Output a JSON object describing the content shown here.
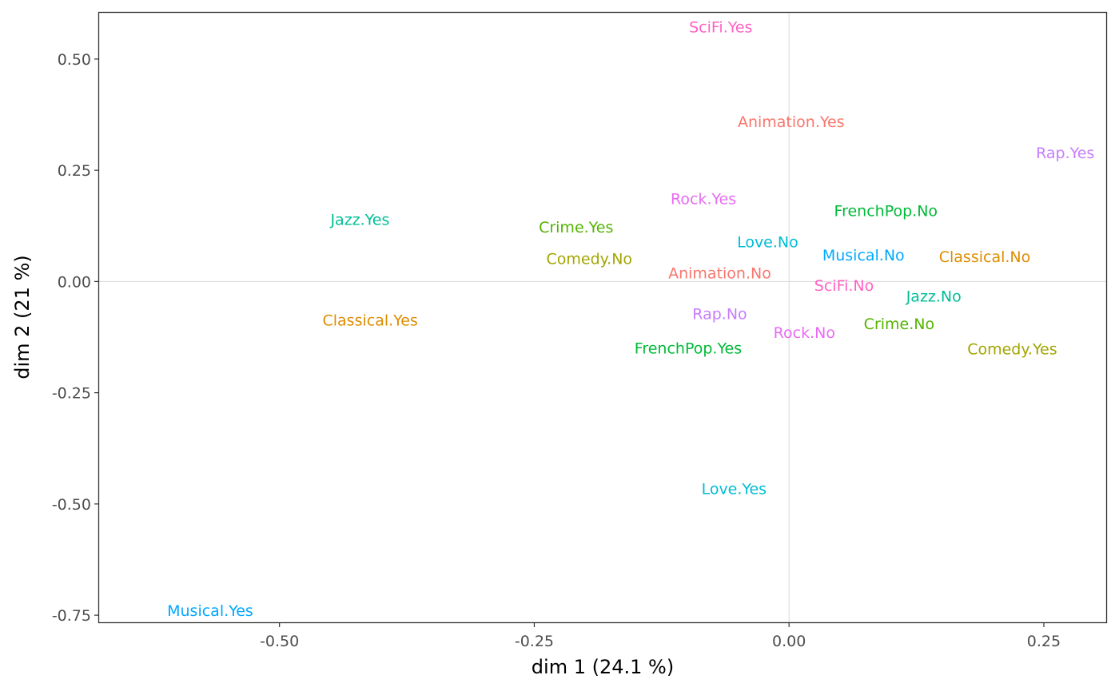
{
  "chart_data": {
    "type": "scatter",
    "title": "",
    "xlabel": "dim 1 (24.1 %)",
    "ylabel": "dim 2 (21 %)",
    "xlim": [
      -0.677,
      0.312
    ],
    "ylim": [
      -0.766,
      0.604
    ],
    "xticks": [
      -0.5,
      -0.25,
      0.0,
      0.25
    ],
    "xtick_labels": [
      "-0.50",
      "-0.25",
      "0.00",
      "0.25"
    ],
    "yticks": [
      0.5,
      0.25,
      0.0,
      -0.25,
      -0.5,
      -0.75
    ],
    "ytick_labels": [
      "0.50",
      "0.25",
      "0.00",
      "-0.25",
      "-0.50",
      "-0.75"
    ],
    "reference_lines": {
      "x": 0,
      "y": 0
    },
    "grid": false,
    "points": [
      {
        "label": "SciFi.Yes",
        "x": -0.067,
        "y": 0.57,
        "color": "#FF61C3"
      },
      {
        "label": "Animation.Yes",
        "x": 0.002,
        "y": 0.357,
        "color": "#F8766D"
      },
      {
        "label": "Rap.Yes",
        "x": 0.271,
        "y": 0.287,
        "color": "#C77CFF"
      },
      {
        "label": "Rock.Yes",
        "x": -0.084,
        "y": 0.184,
        "color": "#E76BF3"
      },
      {
        "label": "FrenchPop.No",
        "x": 0.095,
        "y": 0.157,
        "color": "#00BA38"
      },
      {
        "label": "Jazz.Yes",
        "x": -0.421,
        "y": 0.137,
        "color": "#00BF96"
      },
      {
        "label": "Crime.Yes",
        "x": -0.209,
        "y": 0.12,
        "color": "#53B400"
      },
      {
        "label": "Love.No",
        "x": -0.021,
        "y": 0.087,
        "color": "#00BCD6"
      },
      {
        "label": "Musical.No",
        "x": 0.073,
        "y": 0.057,
        "color": "#00A9FF"
      },
      {
        "label": "Classical.No",
        "x": 0.192,
        "y": 0.054,
        "color": "#DE8C00"
      },
      {
        "label": "Comedy.No",
        "x": -0.196,
        "y": 0.049,
        "color": "#A3A500"
      },
      {
        "label": "Animation.No",
        "x": -0.068,
        "y": 0.017,
        "color": "#F8766D"
      },
      {
        "label": "SciFi.No",
        "x": 0.054,
        "y": -0.011,
        "color": "#FF61C3"
      },
      {
        "label": "Jazz.No",
        "x": 0.142,
        "y": -0.035,
        "color": "#00BF96"
      },
      {
        "label": "Classical.Yes",
        "x": -0.411,
        "y": -0.089,
        "color": "#DE8C00"
      },
      {
        "label": "Rap.No",
        "x": -0.068,
        "y": -0.075,
        "color": "#C77CFF"
      },
      {
        "label": "Crime.No",
        "x": 0.108,
        "y": -0.097,
        "color": "#53B400"
      },
      {
        "label": "Rock.No",
        "x": 0.015,
        "y": -0.117,
        "color": "#E76BF3"
      },
      {
        "label": "FrenchPop.Yes",
        "x": -0.099,
        "y": -0.152,
        "color": "#00BA38"
      },
      {
        "label": "Comedy.Yes",
        "x": 0.219,
        "y": -0.154,
        "color": "#A3A500"
      },
      {
        "label": "Love.Yes",
        "x": -0.054,
        "y": -0.468,
        "color": "#00BCD6"
      },
      {
        "label": "Musical.Yes",
        "x": -0.568,
        "y": -0.742,
        "color": "#00A9FF"
      }
    ]
  }
}
